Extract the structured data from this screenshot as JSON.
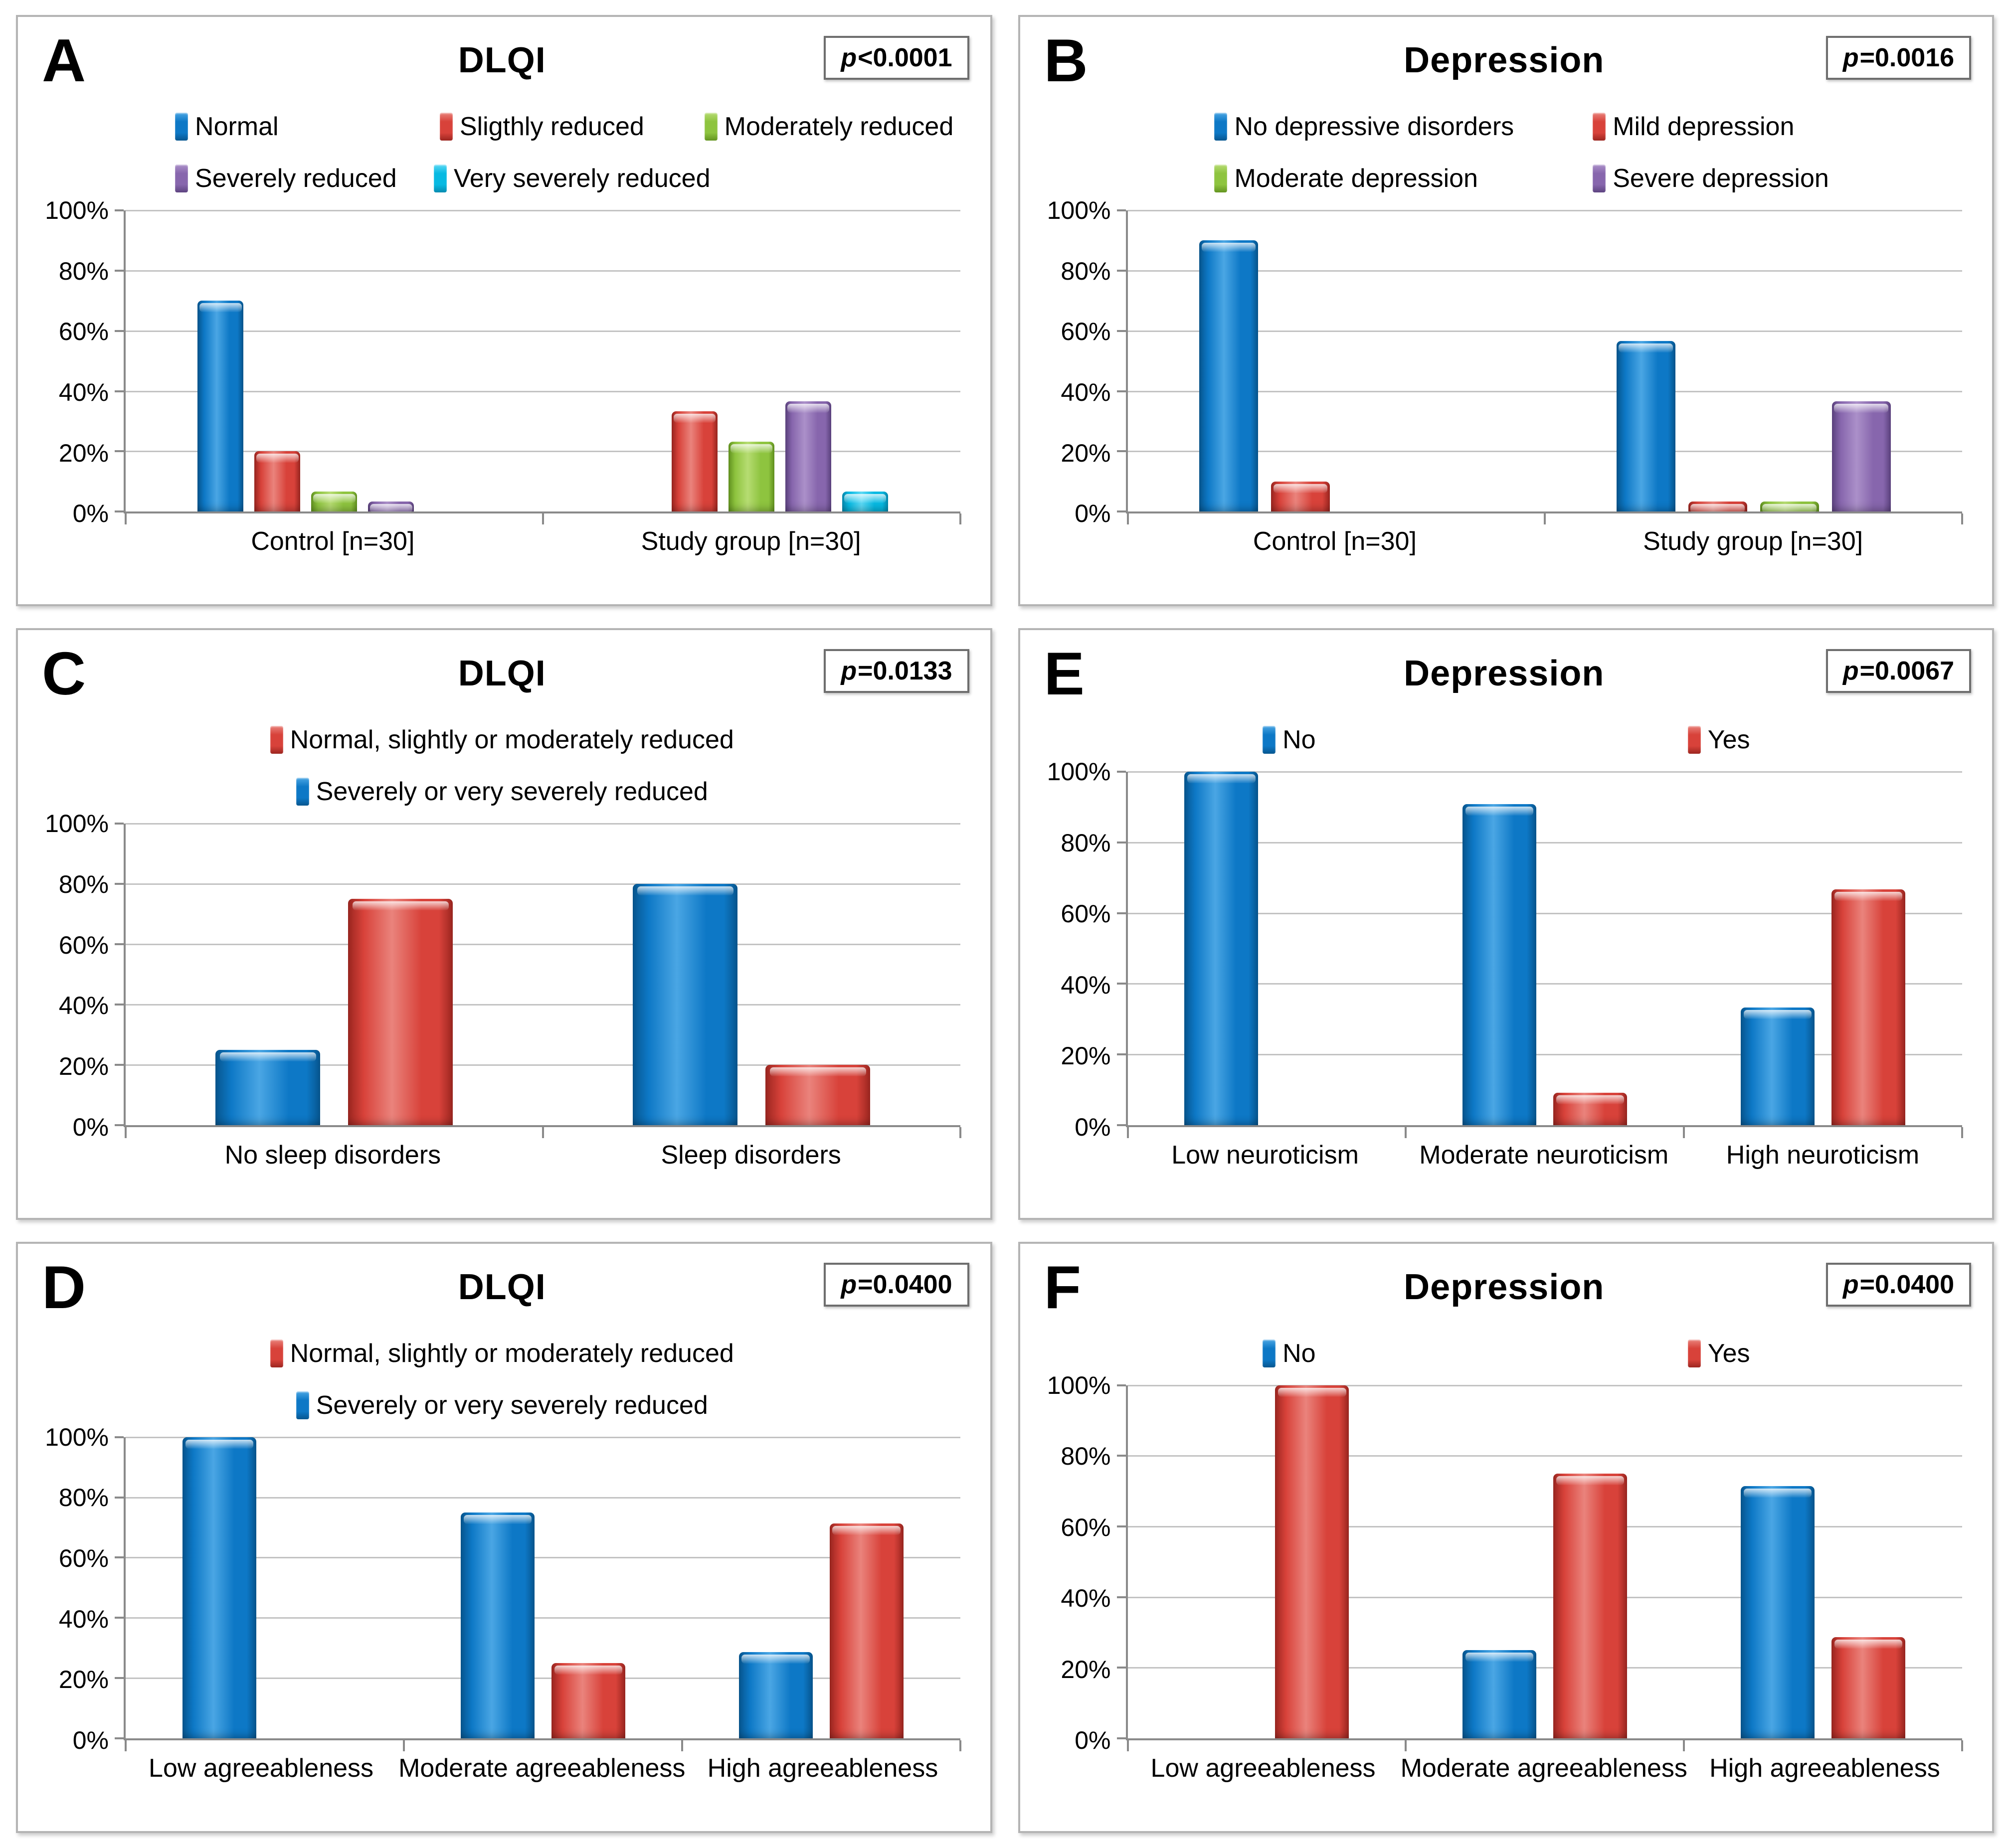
{
  "figure_title": "Six-panel bar chart figure: DLQI and Depression distributions",
  "chart_colors": {
    "blue": {
      "main": "#0d78c6",
      "light": "#4aa6e4",
      "dark": "#07568f"
    },
    "red": {
      "main": "#d8423a",
      "light": "#ea837c",
      "dark": "#9c2620"
    },
    "green": {
      "main": "#8ec43f",
      "light": "#b6dc72",
      "dark": "#639420"
    },
    "purple": {
      "main": "#8766ad",
      "light": "#ab90c9",
      "dark": "#5d4380"
    },
    "cyan": {
      "main": "#07b9e2",
      "light": "#5cd9f5",
      "dark": "#058bb0"
    }
  },
  "axis": {
    "grid_color": "#c3c3c3",
    "axis_color": "#8a8a8a"
  },
  "chart_data": [
    {
      "panel": "A",
      "type": "bar",
      "title": "DLQI",
      "p_value": "p<0.0001",
      "categories": [
        "Control [n=30]",
        "Study group [n=30]"
      ],
      "series": [
        {
          "name": "Normal",
          "color": "blue",
          "values": [
            70,
            0
          ]
        },
        {
          "name": "Sligthly reduced",
          "color": "red",
          "values": [
            20,
            33.3
          ]
        },
        {
          "name": "Moderately reduced",
          "color": "green",
          "values": [
            6.7,
            23.3
          ]
        },
        {
          "name": "Severely reduced",
          "color": "purple",
          "values": [
            3.3,
            36.7
          ]
        },
        {
          "name": "Very severely reduced",
          "color": "cyan",
          "values": [
            0,
            6.7
          ]
        }
      ],
      "legend_rows": [
        [
          "Normal",
          "Sligthly reduced",
          "Moderately reduced"
        ],
        [
          "Severely reduced",
          "Very severely reduced"
        ]
      ],
      "ylabel_ticks": [
        "0%",
        "20%",
        "40%",
        "60%",
        "80%",
        "100%"
      ],
      "ylim": [
        0,
        100
      ],
      "grid": true,
      "legend_position": "top"
    },
    {
      "panel": "B",
      "type": "bar",
      "title": "Depression",
      "p_value": "p=0.0016",
      "categories": [
        "Control [n=30]",
        "Study group [n=30]"
      ],
      "series": [
        {
          "name": "No depressive disorders",
          "color": "blue",
          "values": [
            90,
            56.7
          ]
        },
        {
          "name": "Mild depression",
          "color": "red",
          "values": [
            10,
            3.3
          ]
        },
        {
          "name": "Moderate depression",
          "color": "green",
          "values": [
            0,
            3.3
          ]
        },
        {
          "name": "Severe depression",
          "color": "purple",
          "values": [
            0,
            36.7
          ]
        }
      ],
      "legend_rows": [
        [
          "No depressive disorders",
          "Mild depression"
        ],
        [
          "Moderate depression",
          "Severe depression"
        ]
      ],
      "ylabel_ticks": [
        "0%",
        "20%",
        "40%",
        "60%",
        "80%",
        "100%"
      ],
      "ylim": [
        0,
        100
      ],
      "grid": true,
      "legend_position": "top"
    },
    {
      "panel": "C",
      "type": "bar",
      "title": "DLQI",
      "p_value": "p=0.0133",
      "categories": [
        "No sleep disorders",
        "Sleep disorders"
      ],
      "series": [
        {
          "name": "Severely or very severely reduced",
          "color": "blue",
          "values": [
            25,
            80
          ]
        },
        {
          "name": "Normal, slightly or moderately reduced",
          "color": "red",
          "values": [
            75,
            20
          ]
        }
      ],
      "legend_rows": [
        [
          "Normal, slightly or moderately reduced"
        ],
        [
          "Severely or very severely reduced"
        ]
      ],
      "ylabel_ticks": [
        "0%",
        "20%",
        "40%",
        "60%",
        "80%",
        "100%"
      ],
      "ylim": [
        0,
        100
      ],
      "grid": true,
      "legend_position": "top"
    },
    {
      "panel": "E",
      "type": "bar",
      "title": "Depression",
      "p_value": "p=0.0067",
      "categories": [
        "Low neuroticism",
        "Moderate neuroticism",
        "High neuroticism"
      ],
      "series": [
        {
          "name": "No",
          "color": "blue",
          "values": [
            100,
            90.9,
            33.3
          ]
        },
        {
          "name": "Yes",
          "color": "red",
          "values": [
            0,
            9.1,
            66.7
          ]
        }
      ],
      "legend_rows": [
        [
          "No",
          "Yes"
        ]
      ],
      "ylabel_ticks": [
        "0%",
        "20%",
        "40%",
        "60%",
        "80%",
        "100%"
      ],
      "ylim": [
        0,
        100
      ],
      "grid": true,
      "legend_position": "top"
    },
    {
      "panel": "D",
      "type": "bar",
      "title": "DLQI",
      "p_value": "p=0.0400",
      "categories": [
        "Low agreeableness",
        "Moderate agreeableness",
        "High agreeableness"
      ],
      "series": [
        {
          "name": "Severely or very severely reduced",
          "color": "blue",
          "values": [
            100,
            75,
            28.6
          ]
        },
        {
          "name": "Normal, slightly or moderately reduced",
          "color": "red",
          "values": [
            0,
            25,
            71.4
          ]
        }
      ],
      "legend_rows": [
        [
          "Normal, slightly or moderately reduced"
        ],
        [
          "Severely or very severely reduced"
        ]
      ],
      "ylabel_ticks": [
        "0%",
        "20%",
        "40%",
        "60%",
        "80%",
        "100%"
      ],
      "ylim": [
        0,
        100
      ],
      "grid": true,
      "legend_position": "top"
    },
    {
      "panel": "F",
      "type": "bar",
      "title": "Depression",
      "p_value": "p=0.0400",
      "categories": [
        "Low agreeableness",
        "Moderate agreeableness",
        "High agreeableness"
      ],
      "series": [
        {
          "name": "No",
          "color": "blue",
          "values": [
            0,
            25,
            71.4
          ]
        },
        {
          "name": "Yes",
          "color": "red",
          "values": [
            100,
            75,
            28.6
          ]
        }
      ],
      "legend_rows": [
        [
          "No",
          "Yes"
        ]
      ],
      "ylabel_ticks": [
        "0%",
        "20%",
        "40%",
        "60%",
        "80%",
        "100%"
      ],
      "ylim": [
        0,
        100
      ],
      "grid": true,
      "legend_position": "top"
    }
  ]
}
